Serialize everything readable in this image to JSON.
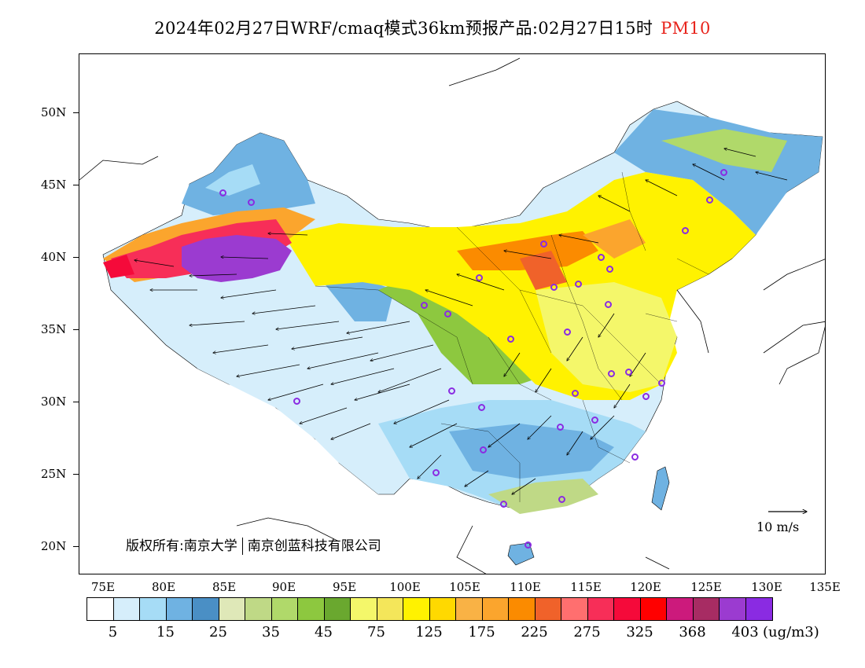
{
  "title": {
    "main": "2024年02月27日WRF/cmaq模式36km预报产品:02月27日15时",
    "pollutant": "PM10",
    "pollutant_color": "#e8241c"
  },
  "axes": {
    "lat_labels": [
      "50N",
      "45N",
      "40N",
      "35N",
      "30N",
      "25N",
      "20N"
    ],
    "lon_labels": [
      "75E",
      "80E",
      "85E",
      "90E",
      "95E",
      "100E",
      "105E",
      "110E",
      "115E",
      "120E",
      "125E",
      "130E",
      "135E"
    ]
  },
  "copyright": {
    "left": "版权所有:南京大学",
    "right": "南京创蓝科技有限公司"
  },
  "wind_reference": {
    "label": "10 m/s"
  },
  "legend": {
    "colors": [
      "#ffffff",
      "#d6eefb",
      "#a6dcf6",
      "#6fb2e2",
      "#4a8fc5",
      "#dfe8b8",
      "#bfd986",
      "#b0d96a",
      "#8dc83f",
      "#6aa82f",
      "#f4f76a",
      "#f4e65a",
      "#fff200",
      "#ffd900",
      "#f9b245",
      "#fba52d",
      "#fb8b00",
      "#f0622a",
      "#ff6f6f",
      "#f72e58",
      "#f50a3a",
      "#ff0000",
      "#cc1a7c",
      "#a72c63",
      "#9b3bd0",
      "#8a2be2"
    ],
    "labels": [
      "5",
      "15",
      "25",
      "35",
      "45",
      "75",
      "125",
      "175",
      "225",
      "275",
      "325",
      "368",
      "403"
    ],
    "unit": "(ug/m3)"
  },
  "stations": {
    "marker_color": "#8a2be2"
  }
}
